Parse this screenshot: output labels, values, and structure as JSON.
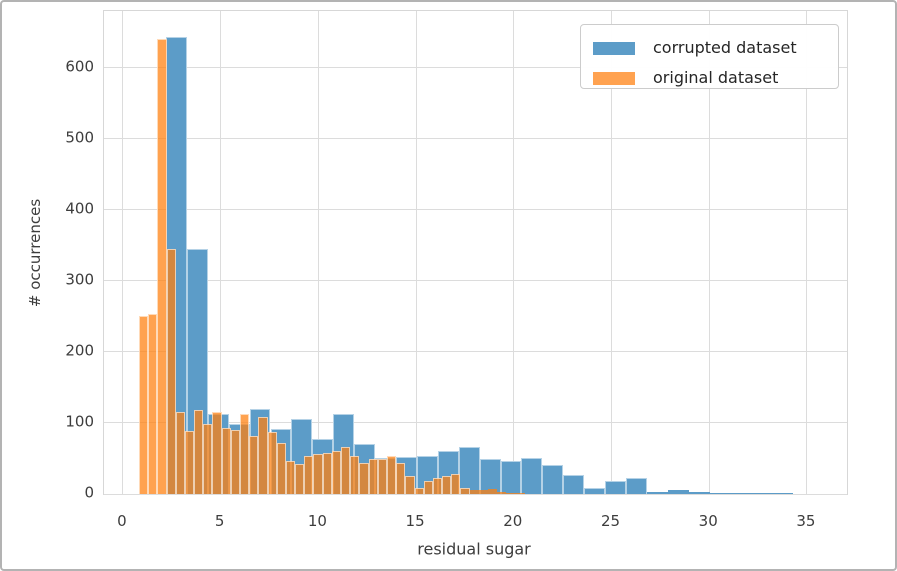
{
  "figure": {
    "background": "#ffffff",
    "frame_border_color": "#b3b3b3",
    "grid_color": "#dcdcdc",
    "spine_color": "#d7d7d7",
    "tick_label_color": "#3d3d3d",
    "axis_label_color": "#3d3d3d",
    "legend": {
      "background": "#ffffff",
      "border_color": "#cccccc",
      "text_color": "#262626"
    }
  },
  "chart_data": {
    "type": "bar",
    "subtype": "histogram",
    "title": "",
    "xlabel": "residual sugar",
    "ylabel": "# occurrences",
    "xlim": [
      -0.97,
      37.05
    ],
    "ylim": [
      0,
      680
    ],
    "xticks": [
      0,
      5,
      10,
      15,
      20,
      25,
      30,
      35
    ],
    "yticks": [
      0,
      100,
      200,
      300,
      400,
      500,
      600
    ],
    "grid": true,
    "legend_position": "upper right",
    "series": [
      {
        "name": "corrupted dataset",
        "color": "#5c9cc8",
        "legend_color": "#5c9cc8",
        "edge_color": "rgba(255,255,255,0.55)",
        "bin_start": 2.2,
        "bin_width": 1.07,
        "counts": [
          643,
          345,
          112,
          98,
          120,
          92,
          105,
          78,
          112,
          70,
          50,
          52,
          53,
          60,
          66,
          49,
          46,
          51,
          41,
          27,
          8,
          19,
          22,
          3,
          6,
          3,
          2,
          2,
          2,
          2
        ]
      },
      {
        "name": "original dataset",
        "color": "rgba(255,127,14,0.73)",
        "legend_color": "#ffa250",
        "edge_color": "rgba(255,255,255,0.6)",
        "bin_start": 0.82,
        "bin_width": 0.47,
        "counts": [
          250,
          253,
          640,
          345,
          115,
          88,
          118,
          98,
          115,
          93,
          90,
          113,
          82,
          109,
          87,
          72,
          46,
          42,
          54,
          56,
          58,
          61,
          66,
          54,
          44,
          49,
          49,
          53,
          44,
          26,
          9,
          19,
          23,
          25,
          28,
          8,
          5,
          6,
          7,
          3,
          2,
          2
        ]
      }
    ]
  }
}
